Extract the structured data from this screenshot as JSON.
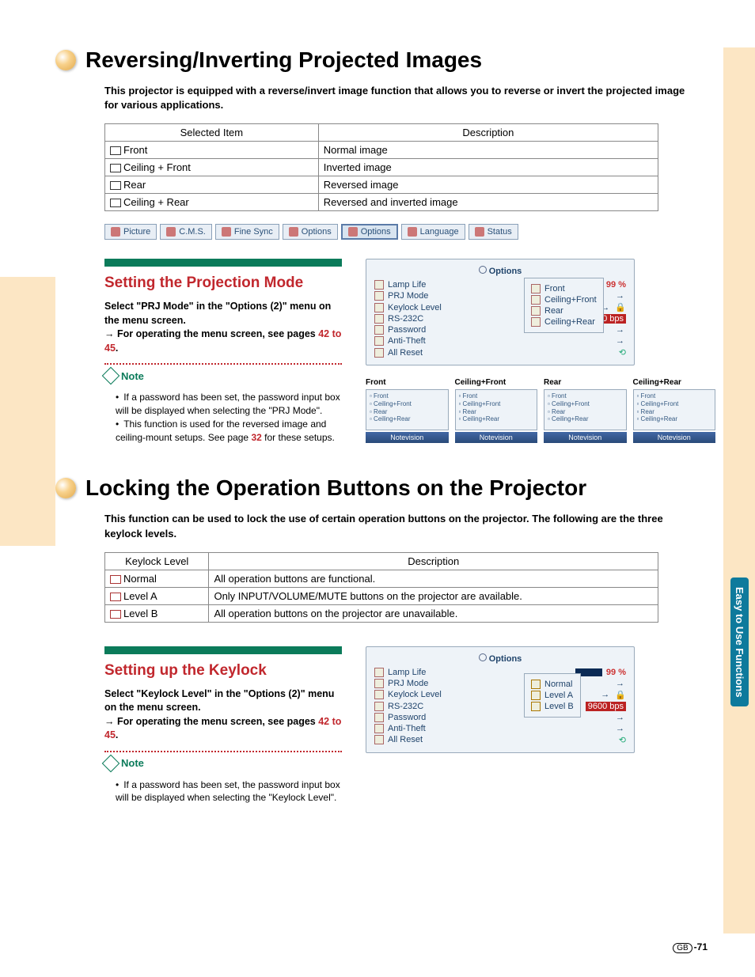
{
  "side_tab": "Easy to Use Functions",
  "section1": {
    "title": "Reversing/Inverting Projected Images",
    "intro": "This projector is equipped with a reverse/invert image function that allows you to reverse or invert the projected image for various applications.",
    "table": {
      "headers": [
        "Selected Item",
        "Description"
      ],
      "rows": [
        [
          "Front",
          "Normal image"
        ],
        [
          "Ceiling + Front",
          "Inverted image"
        ],
        [
          "Rear",
          "Reversed image"
        ],
        [
          "Ceiling + Rear",
          "Reversed and inverted image"
        ]
      ]
    },
    "menu_bar": [
      "Picture",
      "C.M.S.",
      "Fine Sync",
      "Options",
      "Options",
      "Language",
      "Status"
    ],
    "menu_selected_index": 4,
    "sub_title": "Setting the Projection Mode",
    "instruction_bold": "Select \"PRJ Mode\" in the \"Options (2)\" menu on the menu screen.",
    "instruction_follow": "→ For operating the menu screen, see pages ",
    "instruction_link": "42 to 45",
    "instruction_tail": ".",
    "note_label": "Note",
    "notes": [
      "If a password has been set, the password input box will be displayed when selecting the \"PRJ Mode\".",
      "This function is used for the reversed image and ceiling-mount setups. See page 32 for these setups."
    ],
    "note_link_num": "32",
    "osd": {
      "title": "Options",
      "rows": [
        {
          "label": "Lamp Life",
          "value": "99 %",
          "bar": true
        },
        {
          "label": "PRJ Mode",
          "arrow": true
        },
        {
          "label": "Keylock Level",
          "arrow": true,
          "lock": true
        },
        {
          "label": "RS-232C",
          "arrow": true,
          "value": "9600 bps",
          "red": true
        },
        {
          "label": "Password",
          "arrow": true
        },
        {
          "label": "Anti-Theft",
          "arrow": true
        },
        {
          "label": "All Reset",
          "reset": true
        }
      ],
      "callout": [
        "Front",
        "Ceiling+Front",
        "Rear",
        "Ceiling+Rear"
      ]
    },
    "fig_captions": [
      "Front",
      "Ceiling+Front",
      "Rear",
      "Ceiling+Rear"
    ],
    "fig_list": [
      "Front",
      "Ceiling+Front",
      "Rear",
      "Ceiling+Rear"
    ],
    "fig_name": "Notevision"
  },
  "section2": {
    "title": "Locking the Operation Buttons on the Projector",
    "intro": "This function can be used to lock the use of certain operation buttons on the projector. The following are the three keylock levels.",
    "table": {
      "headers": [
        "Keylock Level",
        "Description"
      ],
      "rows": [
        [
          "Normal",
          "All operation buttons are functional."
        ],
        [
          "Level A",
          "Only INPUT/VOLUME/MUTE buttons on the projector are available."
        ],
        [
          "Level B",
          "All operation buttons on the projector are unavailable."
        ]
      ]
    },
    "sub_title": "Setting up the Keylock",
    "instruction_bold": "Select \"Keylock Level\" in the \"Options (2)\" menu on the menu screen.",
    "instruction_follow": "→ For operating the menu screen, see pages ",
    "instruction_link": "42 to 45",
    "instruction_tail": ".",
    "note_label": "Note",
    "notes": [
      "If a password has been set, the password input box will be displayed when selecting the \"Keylock Level\"."
    ],
    "osd": {
      "title": "Options",
      "rows": [
        {
          "label": "Lamp Life",
          "value": "99 %",
          "bar": true
        },
        {
          "label": "PRJ Mode",
          "arrow": true
        },
        {
          "label": "Keylock Level",
          "arrow": true,
          "lock": true
        },
        {
          "label": "RS-232C",
          "arrow": true,
          "value": "9600 bps",
          "red": true
        },
        {
          "label": "Password",
          "arrow": true
        },
        {
          "label": "Anti-Theft",
          "arrow": true
        },
        {
          "label": "All Reset",
          "reset": true
        }
      ],
      "callout": [
        "Normal",
        "Level A",
        "Level B"
      ]
    }
  },
  "page_number": {
    "prefix": "GB",
    "num": "-71"
  },
  "colors": {
    "accent_red": "#c1272d",
    "accent_green": "#0b7b5a",
    "accent_tan": "#fce6c4",
    "side_tab_bg": "#0e7a9c"
  }
}
